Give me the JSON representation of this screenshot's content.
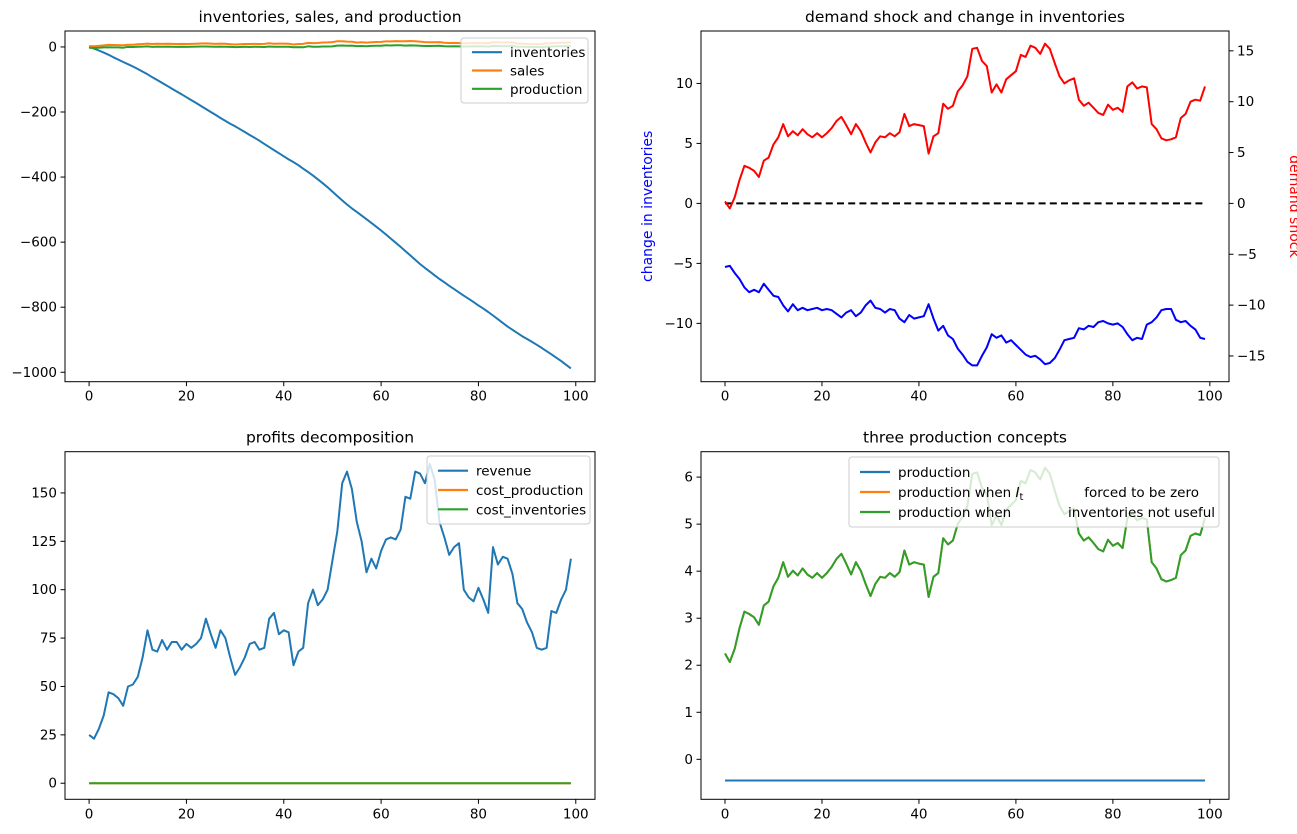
{
  "colors": {
    "matplotlib_blue": "#1f77b4",
    "matplotlib_orange": "#ff7f0e",
    "matplotlib_green": "#2ca02c",
    "pure_blue": "#0000ff",
    "pure_red": "#ff0000",
    "black": "#000000",
    "legend_edge": "#cccccc",
    "background": "#ffffff"
  },
  "chart_data": [
    {
      "id": "inventories-sales-production",
      "type": "line",
      "title": "inventories, sales, and production",
      "x": "time index 0-99",
      "xlim": [
        -4.95,
        103.95
      ],
      "ylim": [
        -1029,
        49
      ],
      "xticks": [
        0,
        20,
        40,
        60,
        80,
        100
      ],
      "yticks": [
        0,
        -200,
        -400,
        -600,
        -800,
        -1000
      ],
      "grid": false,
      "legend": {
        "position": "upper right",
        "entries": [
          {
            "label": "inventories",
            "color": "#1f77b4"
          },
          {
            "label": "sales",
            "color": "#ff7f0e"
          },
          {
            "label": "production",
            "color": "#2ca02c"
          }
        ]
      },
      "series": [
        {
          "name": "inventories",
          "color": "#1f77b4",
          "values": [
            0,
            -5.2,
            -11.0,
            -17.3,
            -24.3,
            -31.7,
            -38.9,
            -46.3,
            -53.0,
            -60.2,
            -67.9,
            -75.7,
            -84.2,
            -93.2,
            -101.6,
            -110.5,
            -119.2,
            -128.1,
            -136.9,
            -145.6,
            -154.5,
            -163.3,
            -172.2,
            -181.4,
            -190.9,
            -200.0,
            -208.9,
            -218.3,
            -227.4,
            -235.9,
            -244.0,
            -252.7,
            -261.5,
            -270.6,
            -279.4,
            -288.3,
            -297.9,
            -307.8,
            -317.1,
            -326.7,
            -336.2,
            -345.6,
            -354.0,
            -363.6,
            -374.2,
            -384.4,
            -395.4,
            -406.7,
            -418.8,
            -431.4,
            -444.6,
            -458.1,
            -471.6,
            -484.3,
            -496.3,
            -507.2,
            -518.4,
            -529.4,
            -541.0,
            -552.4,
            -564.2,
            -576.4,
            -589.0,
            -601.8,
            -614.5,
            -627.5,
            -640.9,
            -654.2,
            -667.1,
            -679.3,
            -690.7,
            -702.0,
            -713.2,
            -723.6,
            -734.1,
            -744.3,
            -754.6,
            -764.5,
            -774.3,
            -784.3,
            -794.4,
            -804.4,
            -814.7,
            -825.6,
            -837.0,
            -848.2,
            -859.5,
            -869.6,
            -879.5,
            -889.0,
            -897.9,
            -906.7,
            -915.5,
            -925.2,
            -935.1,
            -944.9,
            -955.1,
            -965.6,
            -976.8,
            -988.1
          ]
        },
        {
          "name": "sales",
          "color": "#ff7f0e",
          "values": [
            2.7,
            2.0,
            3.1,
            4.8,
            6.2,
            6.0,
            5.7,
            5.1,
            6.7,
            7.0,
            8.3,
            9.0,
            10.3,
            9.1,
            9.6,
            9.2,
            9.8,
            9.3,
            9.0,
            9.4,
            9.0,
            9.4,
            9.9,
            10.6,
            11.0,
            10.2,
            9.3,
            10.3,
            9.6,
            8.5,
            7.5,
            8.5,
            9.1,
            9.0,
            9.4,
            9.1,
            9.5,
            11.3,
            10.1,
            10.3,
            10.2,
            10.1,
            7.4,
            9.1,
            9.4,
            12.3,
            11.8,
            12.1,
            13.5,
            14.1,
            15.0,
            17.7,
            17.8,
            16.5,
            16.0,
            13.4,
            14.2,
            13.4,
            14.7,
            15.1,
            15.5,
            17.1,
            16.9,
            18.0,
            17.8,
            17.2,
            18.2,
            17.7,
            16.3,
            15.0,
            14.3,
            14.6,
            14.8,
            12.7,
            12.1,
            12.4,
            11.9,
            11.4,
            11.2,
            12.2,
            11.7,
            11.9,
            11.5,
            14.0,
            14.4,
            13.8,
            14.0,
            13.9,
            10.3,
            9.8,
            8.9,
            8.7,
            8.8,
            9.0,
            10.9,
            11.3,
            12.5,
            12.7,
            12.6,
            14.0
          ]
        },
        {
          "name": "production",
          "color": "#2ca02c",
          "values": [
            -2.6,
            -3.2,
            -2.7,
            -1.5,
            -0.8,
            -1.4,
            -1.5,
            -2.3,
            0.0,
            -0.2,
            0.6,
            1.2,
            1.8,
            0.1,
            1.2,
            0.3,
            1.1,
            0.4,
            0.2,
            0.7,
            0.1,
            0.6,
            1.0,
            1.4,
            1.5,
            1.1,
            0.4,
            0.9,
            0.5,
            0.0,
            -0.6,
            -0.2,
            0.3,
            -0.1,
            0.6,
            0.2,
            -0.1,
            1.4,
            0.8,
            0.7,
            0.7,
            0.7,
            -1.0,
            -0.5,
            -1.2,
            2.1,
            0.8,
            0.8,
            1.4,
            1.5,
            1.8,
            4.2,
            4.3,
            3.8,
            4.0,
            2.5,
            3.0,
            2.4,
            3.1,
            3.7,
            3.7,
            4.9,
            4.3,
            5.2,
            5.1,
            4.2,
            4.8,
            4.4,
            3.4,
            2.8,
            2.9,
            3.3,
            3.6,
            2.3,
            1.6,
            2.2,
            1.6,
            1.5,
            1.4,
            2.2,
            1.6,
            1.9,
            1.2,
            3.1,
            3.0,
            2.6,
            2.7,
            3.8,
            0.4,
            0.3,
            0.0,
            -0.1,
            0.0,
            -0.7,
            1.0,
            1.5,
            2.3,
            2.2,
            2.6,
            2.7
          ]
        }
      ]
    },
    {
      "id": "demand-shock-change-in-inventories",
      "type": "line",
      "title": "demand shock and change in inventories",
      "x": "time index 0-99",
      "xlim": [
        -4.95,
        103.95
      ],
      "ylim_left": [
        -14.86,
        14.37
      ],
      "ylim_right": [
        -17.53,
        16.95
      ],
      "xticks": [
        0,
        20,
        40,
        60,
        80,
        100
      ],
      "yticks_left": [
        10,
        5,
        0,
        -5,
        -10
      ],
      "yticks_right": [
        15,
        10,
        5,
        0,
        -5,
        -10,
        -15
      ],
      "ylabel_left": {
        "text": "change in inventories",
        "color": "#0000ff"
      },
      "ylabel_right": {
        "text": "demand shock",
        "color": "#ff0000"
      },
      "grid": false,
      "series": [
        {
          "name": "change in inventories",
          "axis": "left",
          "color": "#0000ff",
          "values": [
            -5.3,
            -5.2,
            -5.8,
            -6.3,
            -7.0,
            -7.4,
            -7.2,
            -7.4,
            -6.7,
            -7.2,
            -7.7,
            -7.8,
            -8.5,
            -9.0,
            -8.4,
            -8.9,
            -8.7,
            -8.9,
            -8.8,
            -8.7,
            -8.9,
            -8.8,
            -8.9,
            -9.2,
            -9.5,
            -9.1,
            -8.9,
            -9.4,
            -9.1,
            -8.5,
            -8.1,
            -8.7,
            -8.8,
            -9.1,
            -8.8,
            -8.9,
            -9.6,
            -9.9,
            -9.3,
            -9.6,
            -9.5,
            -9.4,
            -8.4,
            -9.6,
            -10.6,
            -10.2,
            -11.0,
            -11.3,
            -12.1,
            -12.6,
            -13.2,
            -13.5,
            -13.5,
            -12.7,
            -12.0,
            -10.9,
            -11.2,
            -11.0,
            -11.6,
            -11.4,
            -11.8,
            -12.2,
            -12.6,
            -12.8,
            -12.7,
            -13.0,
            -13.4,
            -13.3,
            -12.9,
            -12.2,
            -11.4,
            -11.3,
            -11.2,
            -10.4,
            -10.5,
            -10.2,
            -10.3,
            -9.9,
            -9.8,
            -10.0,
            -10.1,
            -10.0,
            -10.3,
            -10.9,
            -11.4,
            -11.2,
            -11.3,
            -10.1,
            -9.9,
            -9.5,
            -8.9,
            -8.8,
            -8.8,
            -9.7,
            -9.9,
            -9.8,
            -10.2,
            -10.5,
            -11.2,
            -11.3
          ]
        },
        {
          "name": "zero line",
          "axis": "left",
          "color": "#000000",
          "linestyle": "dashed",
          "constant": 0
        },
        {
          "name": "demand shock",
          "axis": "right",
          "color": "#ff0000",
          "values": [
            0.2,
            -0.5,
            0.6,
            2.3,
            3.7,
            3.5,
            3.2,
            2.6,
            4.2,
            4.5,
            5.8,
            6.5,
            7.8,
            6.6,
            7.1,
            6.7,
            7.3,
            6.8,
            6.5,
            6.9,
            6.5,
            6.9,
            7.4,
            8.1,
            8.5,
            7.7,
            6.8,
            7.8,
            7.1,
            6.0,
            5.0,
            6.0,
            6.6,
            6.5,
            6.9,
            6.6,
            7.0,
            8.8,
            7.6,
            7.8,
            7.7,
            7.6,
            4.9,
            6.6,
            6.9,
            9.8,
            9.3,
            9.6,
            11.0,
            11.6,
            12.5,
            15.2,
            15.3,
            14.0,
            13.5,
            10.9,
            11.7,
            10.9,
            12.2,
            12.6,
            13.0,
            14.6,
            14.4,
            15.5,
            15.3,
            14.7,
            15.7,
            15.2,
            13.8,
            12.5,
            11.8,
            12.1,
            12.3,
            10.2,
            9.6,
            9.9,
            9.4,
            8.9,
            8.7,
            9.7,
            9.2,
            9.4,
            9.0,
            11.5,
            11.9,
            11.3,
            11.5,
            11.4,
            7.8,
            7.3,
            6.4,
            6.2,
            6.3,
            6.5,
            8.4,
            8.8,
            10.0,
            10.2,
            10.1,
            11.5
          ]
        }
      ]
    },
    {
      "id": "profits-decomposition",
      "type": "line",
      "title": "profits decomposition",
      "x": "time index 0-99",
      "xlim": [
        -4.95,
        103.95
      ],
      "ylim": [
        -8.3,
        171.3
      ],
      "xticks": [
        0,
        20,
        40,
        60,
        80,
        100
      ],
      "yticks": [
        0,
        25,
        50,
        75,
        100,
        125,
        150
      ],
      "grid": false,
      "legend": {
        "position": "upper right",
        "entries": [
          {
            "label": "revenue",
            "color": "#1f77b4"
          },
          {
            "label": "cost_production",
            "color": "#ff7f0e"
          },
          {
            "label": "cost_inventories",
            "color": "#2ca02c"
          }
        ]
      },
      "series": [
        {
          "name": "revenue",
          "color": "#1f77b4",
          "values": [
            25,
            23,
            28,
            35,
            47,
            46,
            44,
            40,
            50,
            51,
            55,
            65,
            79,
            69,
            68,
            74,
            69,
            73,
            73,
            69,
            72,
            70,
            72,
            75,
            85,
            77,
            70,
            79,
            75,
            65,
            56,
            60,
            65,
            72,
            73,
            69,
            70,
            85,
            88,
            77,
            79,
            78,
            61,
            68,
            70,
            93,
            100,
            92,
            95,
            100,
            115,
            130,
            155,
            161,
            152,
            135,
            125,
            109,
            116,
            111,
            120,
            126,
            127,
            126,
            131,
            148,
            147,
            161,
            160,
            155,
            165,
            157,
            135,
            127,
            118,
            122,
            124,
            100,
            96,
            94,
            101,
            95,
            88,
            122,
            113,
            117,
            116,
            108,
            93,
            90,
            83,
            78,
            70,
            69,
            70,
            89,
            88,
            95,
            100,
            116
          ]
        },
        {
          "name": "cost_production",
          "color": "#ff7f0e",
          "constant": 0
        },
        {
          "name": "cost_inventories",
          "color": "#2ca02c",
          "constant": 0
        }
      ]
    },
    {
      "id": "three-production-concepts",
      "type": "line",
      "title": "three production concepts",
      "x": "time index 0-99",
      "xlim": [
        -4.95,
        103.95
      ],
      "ylim": [
        -0.85,
        6.54
      ],
      "xticks": [
        0,
        20,
        40,
        60,
        80,
        100
      ],
      "yticks": [
        0,
        1,
        2,
        3,
        4,
        5,
        6
      ],
      "grid": false,
      "legend": {
        "position": "upper center",
        "entries": [
          {
            "label": "production",
            "color": "#1f77b4"
          },
          {
            "label": "production when ",
            "math_var": "I",
            "math_sub": "t",
            "label_right": "forced to be zero",
            "color": "#ff7f0e"
          },
          {
            "label": "production when",
            "label_right": "inventories not useful",
            "color": "#2ca02c"
          }
        ]
      },
      "series": [
        {
          "name": "production",
          "color": "#1f77b4",
          "constant": -0.45
        },
        {
          "name": "production when I_t forced to be zero",
          "color": "#ff7f0e",
          "values": [
            2.25,
            2.07,
            2.35,
            2.79,
            3.14,
            3.09,
            3.02,
            2.86,
            3.27,
            3.35,
            3.68,
            3.86,
            4.19,
            3.88,
            4.01,
            3.91,
            4.06,
            3.93,
            3.86,
            3.96,
            3.86,
            3.96,
            4.09,
            4.26,
            4.37,
            4.16,
            3.93,
            4.19,
            4.01,
            3.73,
            3.47,
            3.73,
            3.88,
            3.86,
            3.96,
            3.88,
            3.98,
            4.44,
            4.14,
            4.19,
            4.16,
            4.14,
            3.45,
            3.88,
            3.96,
            4.7,
            4.57,
            4.65,
            5.0,
            5.16,
            5.39,
            6.07,
            6.1,
            5.77,
            5.64,
            4.98,
            5.18,
            4.98,
            5.31,
            5.41,
            5.51,
            5.92,
            5.87,
            6.15,
            6.1,
            5.95,
            6.2,
            6.07,
            5.72,
            5.39,
            5.21,
            5.28,
            5.33,
            4.8,
            4.65,
            4.72,
            4.6,
            4.47,
            4.42,
            4.67,
            4.54,
            4.6,
            4.49,
            5.13,
            5.23,
            5.08,
            5.13,
            5.1,
            4.19,
            4.06,
            3.83,
            3.78,
            3.81,
            3.86,
            4.34,
            4.44,
            4.75,
            4.8,
            4.77,
            5.13
          ]
        },
        {
          "name": "production when inventories not useful",
          "color": "#2ca02c",
          "values": [
            2.25,
            2.07,
            2.35,
            2.79,
            3.14,
            3.09,
            3.02,
            2.86,
            3.27,
            3.35,
            3.68,
            3.86,
            4.19,
            3.88,
            4.01,
            3.91,
            4.06,
            3.93,
            3.86,
            3.96,
            3.86,
            3.96,
            4.09,
            4.26,
            4.37,
            4.16,
            3.93,
            4.19,
            4.01,
            3.73,
            3.47,
            3.73,
            3.88,
            3.86,
            3.96,
            3.88,
            3.98,
            4.44,
            4.14,
            4.19,
            4.16,
            4.14,
            3.45,
            3.88,
            3.96,
            4.7,
            4.57,
            4.65,
            5.0,
            5.16,
            5.39,
            6.07,
            6.1,
            5.77,
            5.64,
            4.98,
            5.18,
            4.98,
            5.31,
            5.41,
            5.51,
            5.92,
            5.87,
            6.15,
            6.1,
            5.95,
            6.2,
            6.07,
            5.72,
            5.39,
            5.21,
            5.28,
            5.33,
            4.8,
            4.65,
            4.72,
            4.6,
            4.47,
            4.42,
            4.67,
            4.54,
            4.6,
            4.49,
            5.13,
            5.23,
            5.08,
            5.13,
            5.1,
            4.19,
            4.06,
            3.83,
            3.78,
            3.81,
            3.86,
            4.34,
            4.44,
            4.75,
            4.8,
            4.77,
            5.13
          ]
        }
      ]
    }
  ]
}
